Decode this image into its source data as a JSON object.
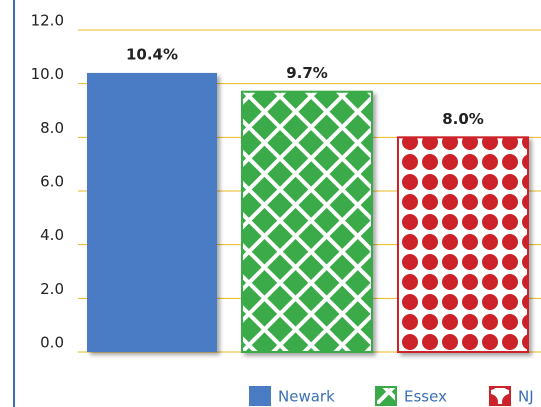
{
  "chart_data": {
    "type": "bar",
    "categories": [
      "Newark",
      "Essex",
      "NJ"
    ],
    "values": [
      10.4,
      9.7,
      8.0
    ],
    "value_labels": [
      "10.4%",
      "9.7%",
      "8.0%"
    ],
    "colors": [
      "#4a7cc4",
      "#3aaa48",
      "#cc2229"
    ],
    "patterns": [
      "solid",
      "crosshatch",
      "dots"
    ],
    "ylim": [
      0,
      12
    ],
    "yticks": [
      {
        "value": 0,
        "label": "0.0"
      },
      {
        "value": 2,
        "label": "2.0"
      },
      {
        "value": 4,
        "label": "4.0"
      },
      {
        "value": 6,
        "label": "6.0"
      },
      {
        "value": 8,
        "label": "8.0"
      },
      {
        "value": 10,
        "label": "10.0"
      },
      {
        "value": 12,
        "label": "12.0"
      }
    ],
    "grid": true
  }
}
